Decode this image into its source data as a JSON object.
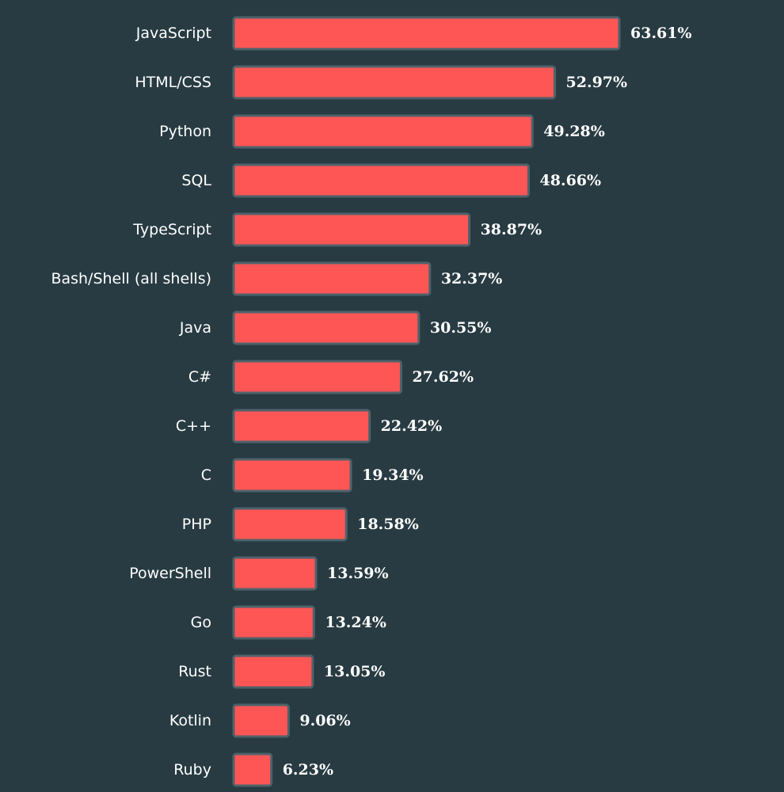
{
  "chart_data": {
    "type": "bar",
    "orientation": "horizontal",
    "categories": [
      "JavaScript",
      "HTML/CSS",
      "Python",
      "SQL",
      "TypeScript",
      "Bash/Shell (all shells)",
      "Java",
      "C#",
      "C++",
      "C",
      "PHP",
      "PowerShell",
      "Go",
      "Rust",
      "Kotlin",
      "Ruby"
    ],
    "values": [
      63.61,
      52.97,
      49.28,
      48.66,
      38.87,
      32.37,
      30.55,
      27.62,
      22.42,
      19.34,
      18.58,
      13.59,
      13.24,
      13.05,
      9.06,
      6.23
    ],
    "value_labels": [
      "63.61%",
      "52.97%",
      "49.28%",
      "48.66%",
      "38.87%",
      "32.37%",
      "30.55%",
      "27.62%",
      "22.42%",
      "19.34%",
      "18.58%",
      "13.59%",
      "13.24%",
      "13.05%",
      "9.06%",
      "6.23%"
    ],
    "title": "",
    "xlabel": "",
    "ylabel": "",
    "xlim": [
      0,
      63.61
    ],
    "grid": false,
    "colors": {
      "background": "#283b42",
      "bar_fill": "#fe5555",
      "bar_stroke": "#4e626a",
      "text": "#ffffff"
    }
  }
}
